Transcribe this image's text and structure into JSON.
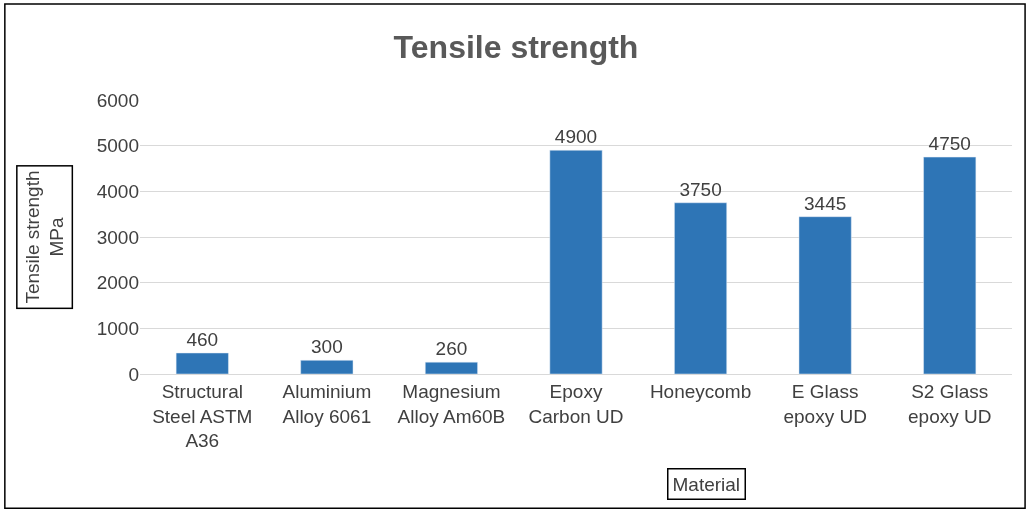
{
  "chart_data": {
    "type": "bar",
    "title": "Tensile strength",
    "xlabel": "Material",
    "ylabel": "Tensile strength MPa",
    "categories": [
      "Structural Steel ASTM A36",
      "Aluminium Alloy 6061",
      "Magnesium Alloy Am60B",
      "Epoxy Carbon UD",
      "Honeycomb",
      "E Glass epoxy UD",
      "S2 Glass epoxy UD"
    ],
    "values": [
      460,
      300,
      260,
      4900,
      3750,
      3445,
      4750
    ],
    "color": "#2e75b6",
    "ylim": [
      0,
      6000
    ],
    "yticks": [
      0,
      1000,
      2000,
      3000,
      4000,
      5000,
      6000
    ],
    "grid": "y",
    "data_labels": true,
    "legend": false
  }
}
